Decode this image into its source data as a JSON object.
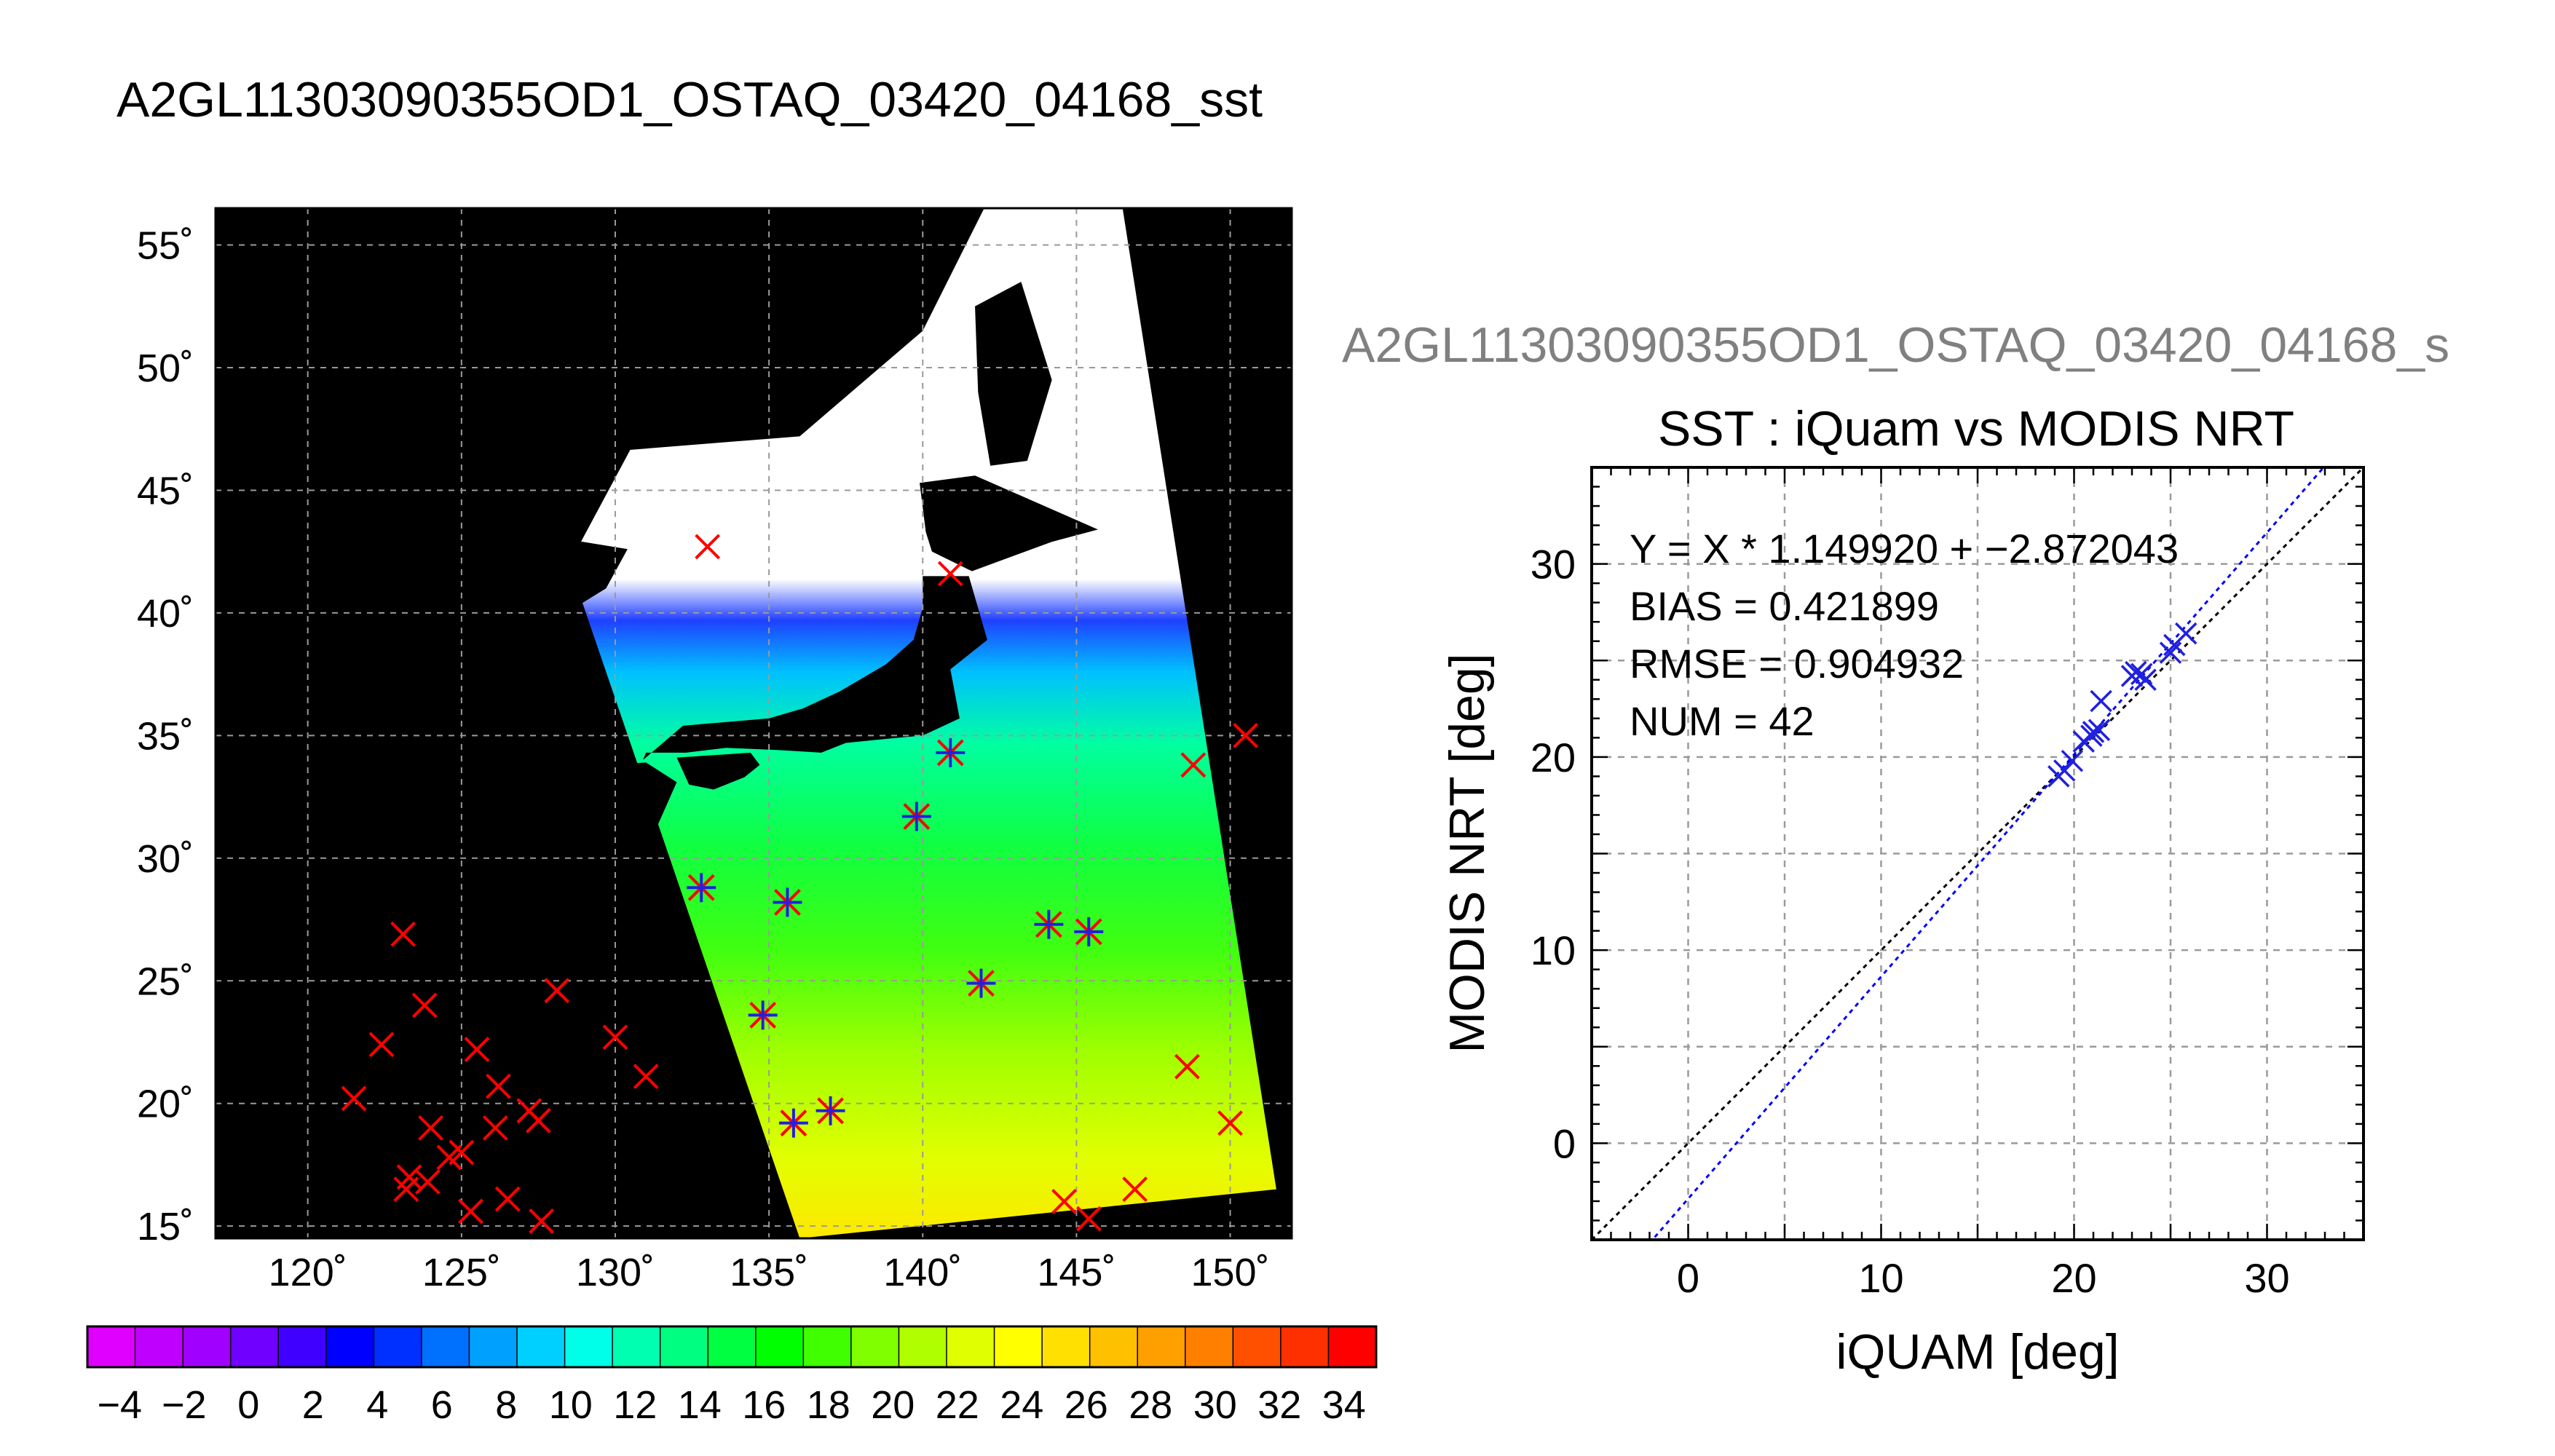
{
  "main_title": "A2GL11303090355OD1_OSTAQ_03420_04168_sst",
  "colors": {
    "background": "#ffffff",
    "map_land": "#000000",
    "gridline": "#9a9a9a",
    "iquam_marker": "#ff0000",
    "modis_marker": "#2020e0",
    "one_to_one_line": "#000000",
    "regression_line": "#0000ff",
    "scatter_title_gray": "#808080"
  },
  "chart_data": [
    {
      "type": "map",
      "xlim": [
        117,
        152
      ],
      "ylim": [
        14.5,
        56.5
      ],
      "x_ticks": [
        120,
        125,
        130,
        135,
        140,
        145,
        150
      ],
      "y_ticks": [
        15,
        20,
        25,
        30,
        35,
        40,
        45,
        50,
        55
      ],
      "tick_suffix": "˚",
      "grid": true,
      "swath_corners_deg": [
        [
          134.7,
          56.5
        ],
        [
          146.5,
          56.5
        ],
        [
          151.5,
          16.5
        ],
        [
          136.0,
          14.5
        ],
        [
          128.5,
          42
        ]
      ],
      "iquam_points": [
        [
          133,
          42.7
        ],
        [
          140.9,
          41.6
        ],
        [
          148.8,
          33.8
        ],
        [
          150.5,
          35.0
        ],
        [
          123.1,
          26.9
        ],
        [
          122.4,
          22.4
        ],
        [
          123.8,
          24.0
        ],
        [
          128.1,
          24.6
        ],
        [
          121.5,
          20.2
        ],
        [
          125.5,
          22.2
        ],
        [
          126.2,
          20.7
        ],
        [
          127.2,
          19.7
        ],
        [
          127.5,
          19.3
        ],
        [
          124.0,
          19.0
        ],
        [
          126.1,
          19.0
        ],
        [
          130.0,
          22.7
        ],
        [
          131.0,
          21.1
        ],
        [
          125.0,
          18.0
        ],
        [
          124.6,
          17.8
        ],
        [
          123.3,
          17.0
        ],
        [
          123.9,
          16.8
        ],
        [
          123.2,
          16.5
        ],
        [
          126.5,
          16.1
        ],
        [
          125.3,
          15.6
        ],
        [
          127.6,
          15.2
        ],
        [
          146.9,
          16.5
        ],
        [
          144.6,
          16.0
        ],
        [
          145.4,
          15.3
        ],
        [
          148.6,
          21.5
        ],
        [
          150.0,
          19.2
        ]
      ],
      "matched_points": [
        [
          140.9,
          34.3
        ],
        [
          139.8,
          31.7
        ],
        [
          132.8,
          28.8
        ],
        [
          135.6,
          28.2
        ],
        [
          144.1,
          27.3
        ],
        [
          145.4,
          27.0
        ],
        [
          141.9,
          24.9
        ],
        [
          134.8,
          23.6
        ],
        [
          135.8,
          19.2
        ],
        [
          137.0,
          19.7
        ]
      ]
    },
    {
      "type": "colorbar",
      "range": [
        -5,
        35
      ],
      "tick_labels": [
        "−4",
        "−2",
        "0",
        "2",
        "4",
        "6",
        "8",
        "10",
        "12",
        "14",
        "16",
        "18",
        "20",
        "22",
        "24",
        "26",
        "28",
        "30",
        "32",
        "34"
      ],
      "tick_values": [
        -4,
        -2,
        0,
        2,
        4,
        6,
        8,
        10,
        12,
        14,
        16,
        18,
        20,
        22,
        24,
        26,
        28,
        30,
        32,
        34
      ],
      "colors": [
        "#e000ff",
        "#c000ff",
        "#a000ff",
        "#7000ff",
        "#4000ff",
        "#0000ff",
        "#0030ff",
        "#0070ff",
        "#00a0ff",
        "#00d0ff",
        "#00ffe8",
        "#00ffb0",
        "#00ff80",
        "#00ff40",
        "#00ff00",
        "#40ff00",
        "#80ff00",
        "#b0ff00",
        "#e0ff00",
        "#ffff00",
        "#ffe000",
        "#ffc000",
        "#ffa000",
        "#ff8000",
        "#ff5000",
        "#ff3000",
        "#ff0000"
      ]
    },
    {
      "type": "scatter",
      "title_header": "A2GL11303090355OD1_OSTAQ_03420_04168_s",
      "title": "SST : iQuam vs MODIS NRT",
      "xlabel": "iQUAM [deg]",
      "ylabel": "MODIS NRT [deg]",
      "xlim": [
        -5,
        35
      ],
      "ylim": [
        -5,
        35
      ],
      "x_ticks": [
        0,
        10,
        20,
        30
      ],
      "y_ticks": [
        0,
        10,
        20,
        30
      ],
      "grid": true,
      "stats": [
        "Y = X * 1.149920 + −2.872043",
        "BIAS = 0.421899",
        "RMSE = 0.904932",
        "NUM = 42"
      ],
      "regression": {
        "slope": 1.14992,
        "intercept": -2.872043
      },
      "points": [
        [
          19.2,
          19.0
        ],
        [
          19.5,
          19.3
        ],
        [
          19.9,
          19.8
        ],
        [
          20.5,
          20.8
        ],
        [
          20.9,
          21.1
        ],
        [
          21.0,
          21.3
        ],
        [
          21.3,
          21.4
        ],
        [
          21.4,
          22.9
        ],
        [
          23.0,
          24.2
        ],
        [
          23.2,
          24.4
        ],
        [
          23.5,
          24.3
        ],
        [
          23.7,
          24.0
        ],
        [
          25.0,
          25.4
        ],
        [
          25.2,
          25.8
        ],
        [
          25.8,
          26.4
        ]
      ]
    }
  ]
}
